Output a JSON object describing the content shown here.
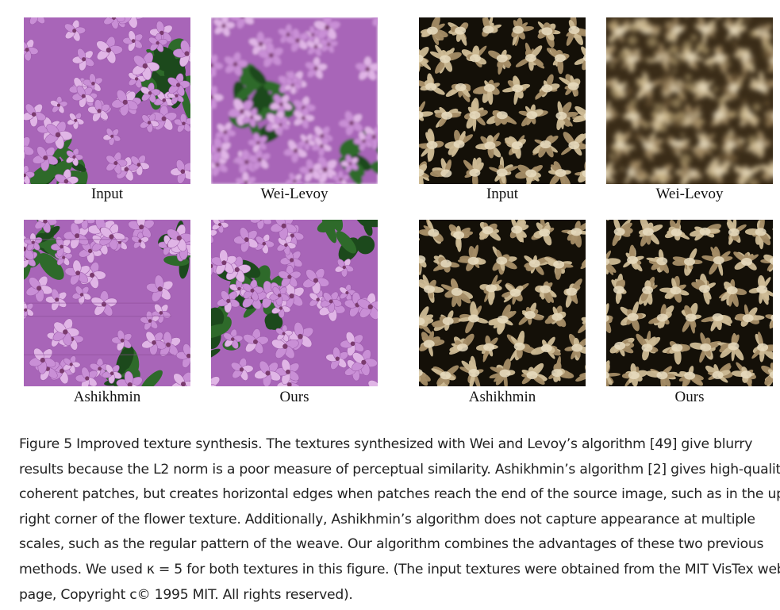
{
  "figure": {
    "groups": [
      {
        "texture": "flower",
        "panels": [
          {
            "id": "flower-input",
            "label": "Input",
            "variant": "input"
          },
          {
            "id": "flower-wei-levoy",
            "label": "Wei-Levoy",
            "variant": "blurry"
          },
          {
            "id": "flower-ashikhmin",
            "label": "Ashikhmin",
            "variant": "patchy"
          },
          {
            "id": "flower-ours",
            "label": "Ours",
            "variant": "ours"
          }
        ]
      },
      {
        "texture": "weave",
        "panels": [
          {
            "id": "weave-input",
            "label": "Input",
            "variant": "input"
          },
          {
            "id": "weave-wei-levoy",
            "label": "Wei-Levoy",
            "variant": "blurry"
          },
          {
            "id": "weave-ashikhmin",
            "label": "Ashikhmin",
            "variant": "patchy"
          },
          {
            "id": "weave-ours",
            "label": "Ours",
            "variant": "ours"
          }
        ]
      }
    ],
    "caption_lines": [
      "Figure 5 Improved texture synthesis. The textures synthesized with Wei and Levoy’s algorithm [49] give blurry",
      "results because the L2 norm is a poor measure of perceptual similarity. Ashikhmin’s algorithm [2] gives high-quality",
      "coherent patches, but creates horizontal edges when patches reach the end of the source image, such as in the upper",
      "right corner of the flower texture. Additionally, Ashikhmin’s algorithm does not capture appearance at multiple",
      "scales, such as the regular pattern of the weave. Our algorithm combines the advantages of these two previous",
      "methods. We used κ = 5 for both textures in this figure. (The input textures were obtained from the MIT VisTex web",
      "page, Copyright c© 1995 MIT. All rights reserved)."
    ]
  },
  "colors": {
    "flower_petal": "#c98fd6",
    "flower_petal_dark": "#a865b8",
    "flower_center": "#7a3a6e",
    "leaf_green": "#2f6b2a",
    "weave_background": "#141008",
    "weave_fiber": "#cdbb95"
  }
}
